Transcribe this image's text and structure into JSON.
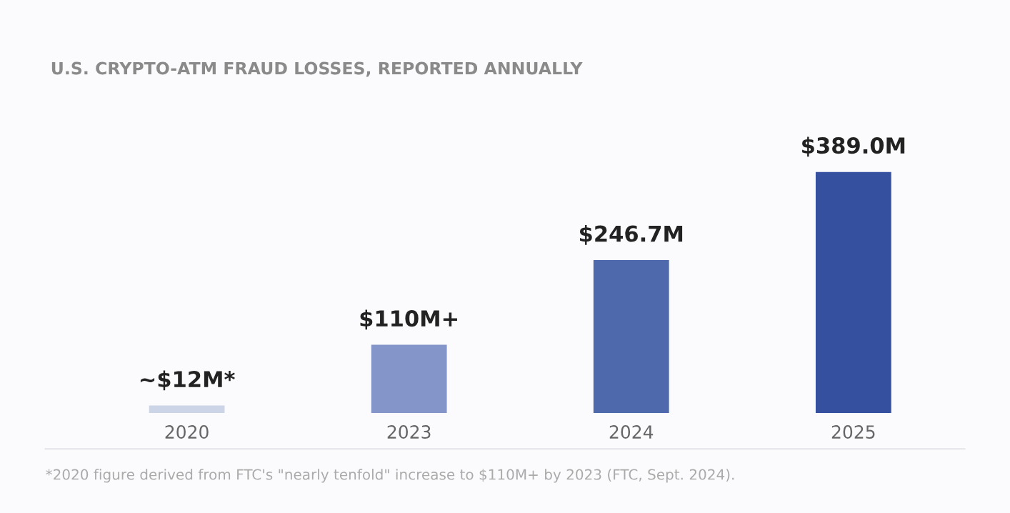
{
  "chart_data": {
    "type": "bar",
    "title": "U.S. CRYPTO-ATM FRAUD LOSSES, REPORTED ANNUALLY",
    "categories": [
      "2020",
      "2023",
      "2024",
      "2025"
    ],
    "values": [
      12,
      110,
      246.7,
      389.0
    ],
    "colors": [
      "#ccd4e8",
      "#8395c9",
      "#4f69ad",
      "#34509e"
    ],
    "value_labels": [
      "~$12M*",
      "$110M+",
      "$246.7M",
      "$389.0M"
    ],
    "annotations": [
      "*2020 figure derived from FTC's \"nearly tenfold\" increase to $110M+ by 2023 (FTC, Sept. 2024)."
    ],
    "grid": false,
    "legend": false
  }
}
